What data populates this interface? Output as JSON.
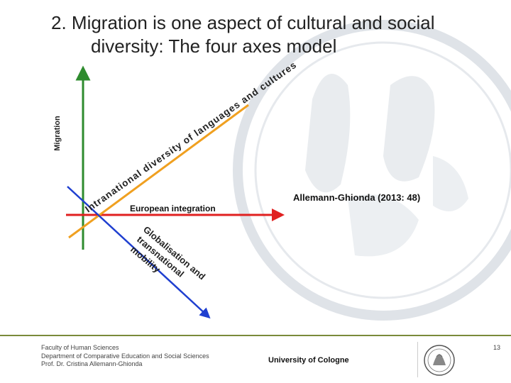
{
  "slide": {
    "title_line1": "2. Migration is one aspect of cultural and social",
    "title_line2": "diversity: The four axes model",
    "page_number": "13"
  },
  "diagram": {
    "axes": [
      {
        "name": "vertical",
        "label": "Migration",
        "color": "#2e8b2e"
      },
      {
        "name": "horizontal",
        "label": "European integration",
        "color": "#e02020"
      },
      {
        "name": "diagonal-up",
        "label": "Intranational diversity of languages and cultures",
        "color": "#f0a020"
      },
      {
        "name": "diagonal-down",
        "label": "Globalisation and transnational mobility",
        "color": "#1f3fd0"
      }
    ],
    "citation": "Allemann-Ghionda (2013: 48)"
  },
  "footer": {
    "left_lines": [
      "Faculty of Human Sciences",
      "Department of Comparative Education and Social Sciences",
      "Prof. Dr. Cristina Allemann-Ghionda"
    ],
    "university": "University of Cologne"
  },
  "colors": {
    "footer_rule": "#7a8a3a",
    "seal": "#c9cfd6"
  }
}
